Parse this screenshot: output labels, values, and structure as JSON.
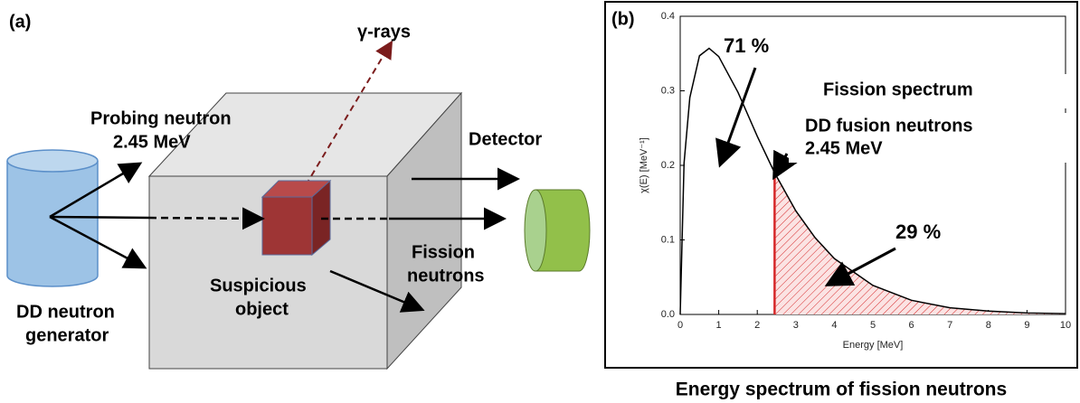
{
  "diagram": {
    "panel_label": "(a)",
    "gamma": "γ-rays",
    "probe_1": "Probing neutron",
    "probe_2": "2.45 MeV",
    "detector": "Detector",
    "fission_1": "Fission",
    "fission_2": "neutrons",
    "object_1": "Suspicious",
    "object_2": "object",
    "generator_1": "DD neutron",
    "generator_2": "generator"
  },
  "caption": "Energy spectrum of fission neutrons",
  "chart_data": {
    "type": "line",
    "panel_label": "(b)",
    "xlabel": "Energy [MeV]",
    "ylabel": "χ(E) [MeV⁻¹]",
    "x": [
      0,
      0.1,
      0.25,
      0.5,
      0.75,
      1,
      1.5,
      2,
      2.45,
      3,
      3.5,
      4,
      5,
      6,
      7,
      8,
      9,
      10
    ],
    "series": [
      {
        "color": "#000000",
        "values": [
          0,
          0.203,
          0.291,
          0.347,
          0.357,
          0.346,
          0.298,
          0.239,
          0.19,
          0.139,
          0.103,
          0.075,
          0.039,
          0.019,
          0.009,
          0.0045,
          0.002,
          0.001
        ]
      }
    ],
    "marker_x": 2.45,
    "shade_color": "#d62728",
    "xlim": [
      0,
      10
    ],
    "ylim": [
      0,
      0.4
    ],
    "xticks": [
      0,
      1,
      2,
      3,
      4,
      5,
      6,
      7,
      8,
      9,
      10
    ],
    "yticks": [
      {
        "value": 0,
        "label": "0.0"
      },
      0.1,
      0.2,
      0.3,
      0.4
    ],
    "annotations": [
      "71 %",
      "Fission spectrum",
      "DD fusion neutrons",
      "2.45 MeV",
      "29 %"
    ]
  }
}
